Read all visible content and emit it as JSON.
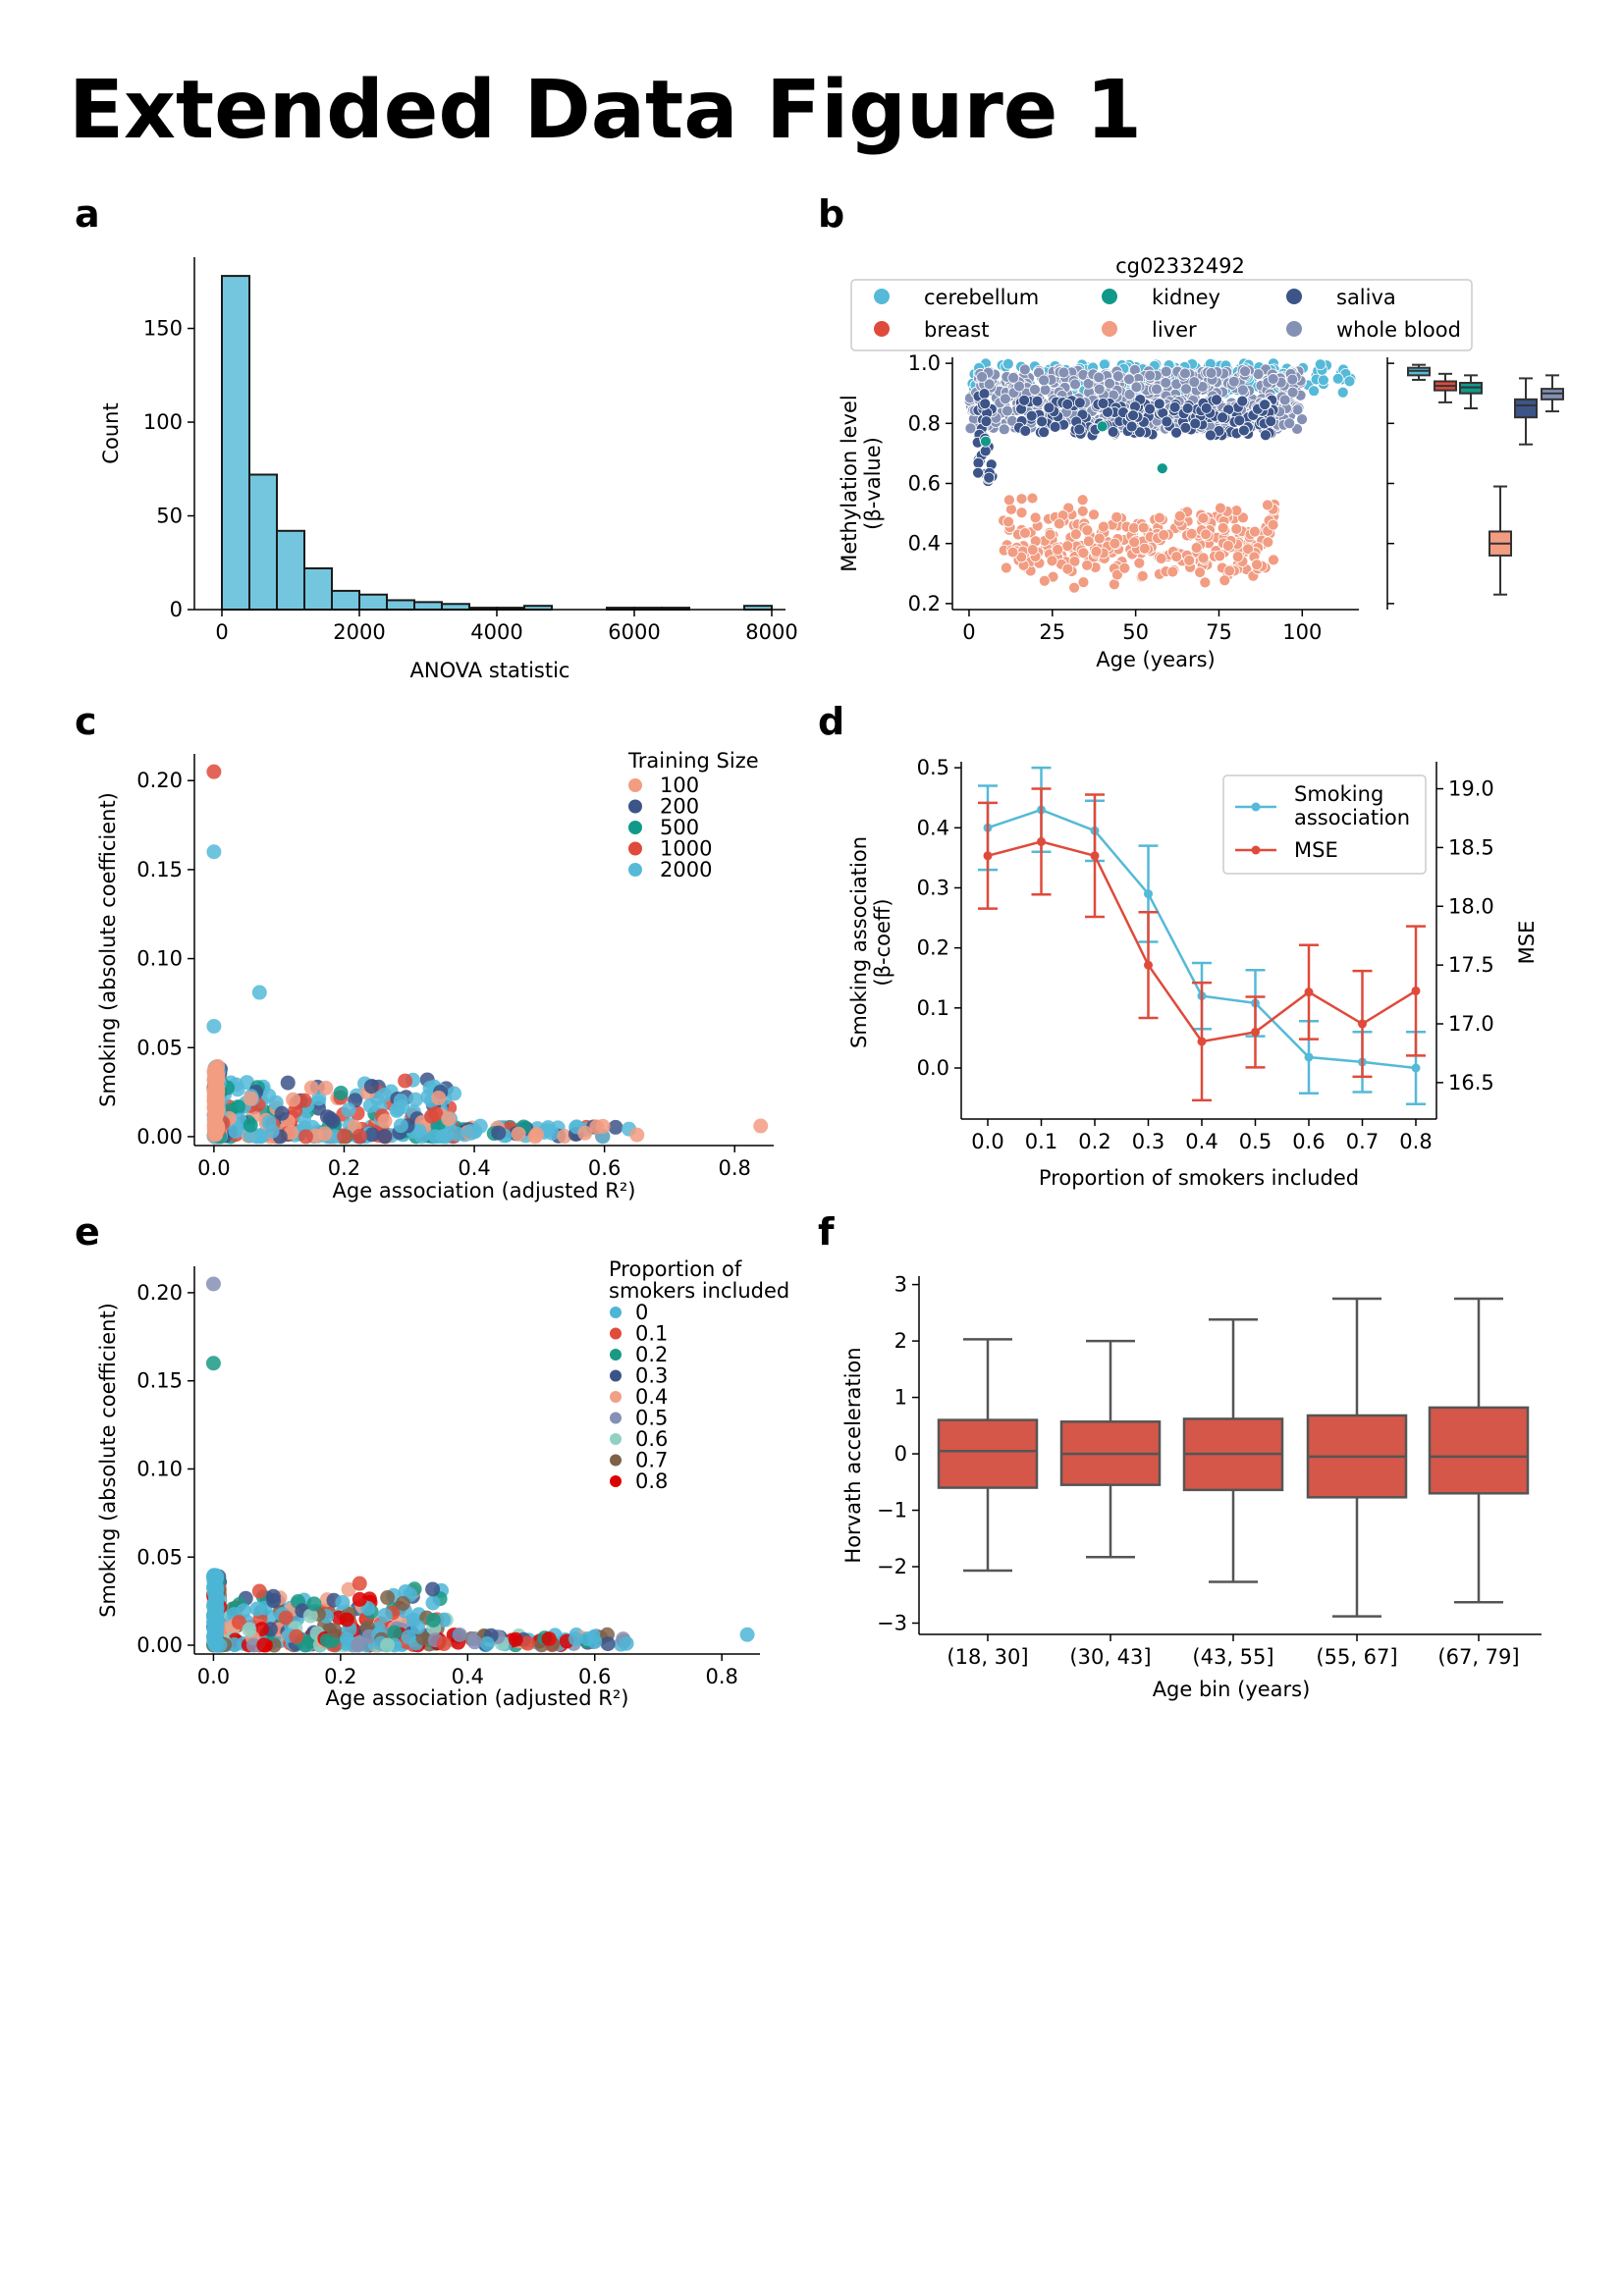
{
  "page": {
    "title": "Extended Data Figure 1"
  },
  "colors": {
    "cerebellum": "#55b9d8",
    "breast": "#df4a3b",
    "kidney": "#10998a",
    "saliva": "#3c5488",
    "liver": "#f29c82",
    "whole_blood": "#8591b4",
    "bar_fill": "#73c6dd",
    "bar_edge": "#1a1a1a",
    "f_box": "#d4574a",
    "ts100": "#f29c82",
    "ts200": "#3c5488",
    "ts500": "#10998a",
    "ts1000": "#df4a3b",
    "ts2000": "#55b9d8",
    "p0": "#4db5d6",
    "p01": "#e04b3a",
    "p02": "#1a9985",
    "p03": "#3b5488",
    "p04": "#f0a086",
    "p05": "#8591b4",
    "p06": "#91d1c2",
    "p07": "#7e6148",
    "p08": "#dc0000"
  },
  "chart_data": [
    {
      "panel": "a",
      "type": "bar",
      "xlabel": "ANOVA statistic",
      "ylabel": "Count",
      "xlim": [
        -400,
        8200
      ],
      "ylim": [
        0,
        188
      ],
      "xticks": [
        0,
        2000,
        4000,
        6000,
        8000
      ],
      "yticks": [
        0,
        50,
        100,
        150
      ],
      "bin_width": 400,
      "bin_starts": [
        0,
        400,
        800,
        1200,
        1600,
        2000,
        2400,
        2800,
        3200,
        3600,
        4000,
        4400,
        5600,
        6000,
        6400,
        7600
      ],
      "values": [
        178,
        72,
        42,
        22,
        10,
        8,
        5,
        4,
        3,
        1,
        1,
        2,
        1,
        1,
        1,
        2
      ]
    },
    {
      "panel": "b",
      "type": "scatter",
      "title": "cg02332492",
      "xlabel": "Age (years)",
      "ylabel": "Methylation level",
      "ylabel2": "(β-value)",
      "xlim": [
        -5,
        117
      ],
      "ylim": [
        0.18,
        1.02
      ],
      "xticks": [
        0,
        25,
        50,
        75,
        100
      ],
      "yticks": [
        0.2,
        0.4,
        0.6,
        0.8,
        1.0
      ],
      "legend": [
        "cerebellum",
        "breast",
        "kidney",
        "liver",
        "saliva",
        "whole blood"
      ],
      "series": [
        {
          "name": "cerebellum",
          "x_range": [
            0,
            115
          ],
          "y_range": [
            0.9,
            1.0
          ],
          "n": 220
        },
        {
          "name": "whole blood",
          "x_range": [
            0,
            100
          ],
          "y_range": [
            0.78,
            0.98
          ],
          "n": 650
        },
        {
          "name": "saliva",
          "x_range": [
            2,
            92
          ],
          "y_range": [
            0.7,
            0.9
          ],
          "n": 210
        },
        {
          "name": "liver",
          "x_range": [
            10,
            92
          ],
          "y_range": [
            0.2,
            0.6
          ],
          "n": 330
        },
        {
          "name": "kidney",
          "points": [
            [
              5,
              0.74
            ],
            [
              58,
              0.65
            ],
            [
              40,
              0.79
            ]
          ]
        },
        {
          "name": "breast",
          "points": []
        }
      ],
      "boxes": [
        {
          "name": "cerebellum",
          "q1": 0.96,
          "median": 0.975,
          "q3": 0.985,
          "low": 0.945,
          "high": 0.995
        },
        {
          "name": "breast",
          "q1": 0.91,
          "median": 0.925,
          "q3": 0.94,
          "low": 0.87,
          "high": 0.965
        },
        {
          "name": "kidney",
          "q1": 0.9,
          "median": 0.92,
          "q3": 0.935,
          "low": 0.85,
          "high": 0.96
        },
        {
          "name": "liver",
          "q1": 0.36,
          "median": 0.4,
          "q3": 0.44,
          "low": 0.23,
          "high": 0.59
        },
        {
          "name": "saliva",
          "q1": 0.82,
          "median": 0.86,
          "q3": 0.88,
          "low": 0.73,
          "high": 0.95
        },
        {
          "name": "whole blood",
          "q1": 0.88,
          "median": 0.9,
          "q3": 0.915,
          "low": 0.84,
          "high": 0.96
        }
      ]
    },
    {
      "panel": "c",
      "type": "scatter",
      "xlabel": "Age association (adjusted R²)",
      "ylabel": "Smoking (absolute coefficient)",
      "xlim": [
        -0.03,
        0.86
      ],
      "ylim": [
        -0.005,
        0.215
      ],
      "xticks": [
        0.0,
        0.2,
        0.4,
        0.6,
        0.8
      ],
      "yticks": [
        0.0,
        0.05,
        0.1,
        0.15,
        0.2
      ],
      "legend_title": "Training Size",
      "legend": [
        "100",
        "200",
        "500",
        "1000",
        "2000"
      ],
      "highlights": [
        [
          0.0,
          0.205
        ],
        [
          0.0,
          0.16
        ],
        [
          0.07,
          0.081
        ],
        [
          0.0,
          0.062
        ],
        [
          0.84,
          0.006
        ],
        [
          0.57,
          0.002
        ],
        [
          0.65,
          0.001
        ]
      ]
    },
    {
      "panel": "d",
      "type": "line",
      "xlabel": "Proportion of smokers included",
      "ylabel": "Smoking association",
      "ylabel2": "(β-coeff)",
      "ylabel_right": "MSE",
      "categories": [
        "0.0",
        "0.1",
        "0.2",
        "0.3",
        "0.4",
        "0.5",
        "0.6",
        "0.7",
        "0.8"
      ],
      "ylim": [
        -0.085,
        0.51
      ],
      "ylim_right": [
        16.19,
        19.23
      ],
      "yticks": [
        0.0,
        0.1,
        0.2,
        0.3,
        0.4,
        0.5
      ],
      "yticks_right": [
        16.5,
        17.0,
        17.5,
        18.0,
        18.5,
        19.0
      ],
      "series": [
        {
          "name": "Smoking association",
          "color": "#55b9d8",
          "values": [
            0.4,
            0.43,
            0.395,
            0.29,
            0.12,
            0.108,
            0.018,
            0.01,
            0.0
          ],
          "err": [
            0.07,
            0.07,
            0.05,
            0.08,
            0.055,
            0.055,
            0.06,
            0.05,
            0.06
          ]
        },
        {
          "name": "MSE",
          "color": "#df4a3b",
          "axis": "right",
          "values": [
            18.43,
            18.55,
            18.43,
            17.5,
            16.85,
            16.93,
            17.27,
            17.0,
            17.28
          ],
          "err": [
            0.45,
            0.45,
            0.52,
            0.45,
            0.5,
            0.3,
            0.4,
            0.45,
            0.55
          ]
        }
      ]
    },
    {
      "panel": "e",
      "type": "scatter",
      "xlabel": "Age association (adjusted R²)",
      "ylabel": "Smoking (absolute coefficient)",
      "xlim": [
        -0.03,
        0.86
      ],
      "ylim": [
        -0.005,
        0.215
      ],
      "xticks": [
        0.0,
        0.2,
        0.4,
        0.6,
        0.8
      ],
      "yticks": [
        0.0,
        0.05,
        0.1,
        0.15,
        0.2
      ],
      "legend_title_1": "Proportion of",
      "legend_title_2": "smokers included",
      "legend": [
        "0",
        "0.1",
        "0.2",
        "0.3",
        "0.4",
        "0.5",
        "0.6",
        "0.7",
        "0.8"
      ],
      "highlights": [
        [
          0.0,
          0.205
        ],
        [
          0.0,
          0.16
        ],
        [
          0.84,
          0.006
        ],
        [
          0.6,
          0.002
        ],
        [
          0.65,
          0.001
        ],
        [
          0.23,
          0.035
        ]
      ]
    },
    {
      "panel": "f",
      "type": "box",
      "xlabel": "Age bin (years)",
      "ylabel": "Horvath acceleration",
      "categories": [
        "(18, 30]",
        "(30, 43]",
        "(43, 55]",
        "(55, 67]",
        "(67, 79]"
      ],
      "ylim": [
        -3.2,
        3.15
      ],
      "yticks": [
        -3,
        -2,
        -1,
        0,
        1,
        2,
        3
      ],
      "boxes": [
        {
          "low": -2.07,
          "q1": -0.6,
          "median": 0.05,
          "q3": 0.6,
          "high": 2.03
        },
        {
          "low": -1.83,
          "q1": -0.55,
          "median": 0.0,
          "q3": 0.57,
          "high": 2.0
        },
        {
          "low": -2.27,
          "q1": -0.64,
          "median": 0.0,
          "q3": 0.62,
          "high": 2.38
        },
        {
          "low": -2.88,
          "q1": -0.77,
          "median": -0.05,
          "q3": 0.68,
          "high": 2.75
        },
        {
          "low": -2.63,
          "q1": -0.7,
          "median": -0.05,
          "q3": 0.82,
          "high": 2.75
        }
      ]
    }
  ]
}
